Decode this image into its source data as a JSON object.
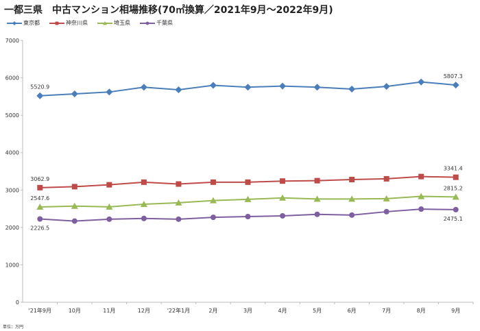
{
  "chart_data": {
    "type": "line",
    "title": "一都三県　中古マンション相場推移(70㎡換算／2021年9月～2022年9月)",
    "unit_note": "単位：万円",
    "categories": [
      "'21年9月",
      "10月",
      "11月",
      "12月",
      "'22年1月",
      "2月",
      "3月",
      "4月",
      "5月",
      "6月",
      "7月",
      "8月",
      "9月"
    ],
    "ylim": [
      0,
      7000
    ],
    "yticks": [
      "0",
      "1000",
      "2000",
      "3000",
      "4000",
      "5000",
      "6000",
      "7000"
    ],
    "grid": false,
    "legend_position": "top-left",
    "series": [
      {
        "name": "東京都",
        "color": "#4a7ebb",
        "marker": "diamond",
        "values": [
          5520.9,
          5570,
          5620,
          5750,
          5680,
          5800,
          5750,
          5780,
          5750,
          5700,
          5770,
          5890,
          5807.3
        ],
        "labels": {
          "first": "5520.9",
          "last": "5807.3"
        }
      },
      {
        "name": "神奈川県",
        "color": "#be4b48",
        "marker": "square",
        "values": [
          3062.9,
          3090,
          3140,
          3210,
          3160,
          3210,
          3210,
          3240,
          3250,
          3280,
          3300,
          3360,
          3341.4
        ],
        "labels": {
          "first": "3062.9",
          "last": "3341.4"
        }
      },
      {
        "name": "埼玉県",
        "color": "#98b954",
        "marker": "triangle",
        "values": [
          2547.6,
          2570,
          2550,
          2620,
          2660,
          2720,
          2750,
          2790,
          2760,
          2760,
          2770,
          2830,
          2815.2
        ],
        "labels": {
          "first": "2547.6",
          "last": "2815.2"
        }
      },
      {
        "name": "千葉県",
        "color": "#7d5fa0",
        "marker": "circle",
        "values": [
          2226.5,
          2170,
          2220,
          2240,
          2220,
          2270,
          2290,
          2310,
          2350,
          2330,
          2420,
          2490,
          2475.1
        ],
        "labels": {
          "first": "2226.5",
          "last": "2475.1"
        }
      }
    ]
  }
}
